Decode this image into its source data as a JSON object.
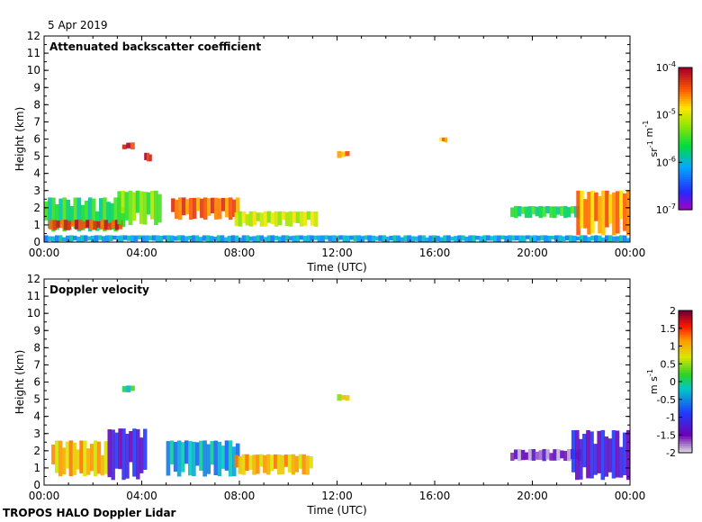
{
  "date": "5 Apr 2019",
  "footer": "TROPOS HALO Doppler Lidar",
  "chart_data": [
    {
      "type": "heatmap",
      "title": "Attenuated backscatter coefficient",
      "xlabel": "Time (UTC)",
      "ylabel": "Height (km)",
      "xticks": [
        "00:00",
        "04:00",
        "08:00",
        "12:00",
        "16:00",
        "20:00",
        "00:00"
      ],
      "xlim_hours": [
        0,
        24
      ],
      "ylim": [
        0,
        12
      ],
      "yticks": [
        0,
        1,
        2,
        3,
        4,
        5,
        6,
        7,
        8,
        9,
        10,
        11,
        12
      ],
      "colorbar": {
        "scale": "log",
        "range": [
          1e-07,
          0.0001
        ],
        "ticks": [
          "10^-7",
          "10^-6",
          "10^-5",
          "10^-4"
        ],
        "tick_labels": [
          {
            "base": "10",
            "exp": "-7"
          },
          {
            "base": "10",
            "exp": "-6"
          },
          {
            "base": "10",
            "exp": "-5"
          },
          {
            "base": "10",
            "exp": "-4"
          }
        ],
        "units_parts": [
          {
            "base": "sr",
            "exp": "-1"
          },
          {
            "base": " m",
            "exp": "-1"
          }
        ]
      },
      "features": [
        {
          "name": "boundary-layer aerosol morning",
          "t": [
            0.0,
            3.3
          ],
          "z": [
            0.6,
            2.6
          ],
          "level": 0.45
        },
        {
          "name": "cloud base layer 00-03",
          "t": [
            0.2,
            3.2
          ],
          "z": [
            0.7,
            1.3
          ],
          "level": 0.9
        },
        {
          "name": "layer 03-05",
          "t": [
            3.0,
            4.8
          ],
          "z": [
            1.0,
            3.0
          ],
          "level": 0.55
        },
        {
          "name": "cloud layer 05-08",
          "t": [
            5.2,
            8.0
          ],
          "z": [
            1.3,
            2.6
          ],
          "level": 0.85
        },
        {
          "name": "cloud layer 08-11",
          "t": [
            7.8,
            11.2
          ],
          "z": [
            0.9,
            1.8
          ],
          "level": 0.65
        },
        {
          "name": "near-surface band",
          "t": [
            0.0,
            24.0
          ],
          "z": [
            0.0,
            0.4
          ],
          "level": 0.3
        },
        {
          "name": "mid cloud 03-04h",
          "t": [
            3.2,
            3.7
          ],
          "z": [
            5.4,
            5.8
          ],
          "level": 0.95
        },
        {
          "name": "mid cloud 04h",
          "t": [
            4.1,
            4.4
          ],
          "z": [
            4.7,
            5.2
          ],
          "level": 0.95
        },
        {
          "name": "mid cloud 12h",
          "t": [
            12.0,
            12.5
          ],
          "z": [
            4.9,
            5.3
          ],
          "level": 0.8
        },
        {
          "name": "mid cloud 16h",
          "t": [
            16.2,
            16.5
          ],
          "z": [
            5.8,
            6.1
          ],
          "level": 0.8
        },
        {
          "name": "evening layer",
          "t": [
            19.1,
            22.0
          ],
          "z": [
            1.4,
            2.1
          ],
          "level": 0.45
        },
        {
          "name": "evening convective",
          "t": [
            21.8,
            24.0
          ],
          "z": [
            0.4,
            3.0
          ],
          "level": 0.8
        }
      ]
    },
    {
      "type": "heatmap",
      "title": "Doppler velocity",
      "xlabel": "Time (UTC)",
      "ylabel": "Height (km)",
      "xticks": [
        "00:00",
        "04:00",
        "08:00",
        "12:00",
        "16:00",
        "20:00",
        "00:00"
      ],
      "xlim_hours": [
        0,
        24
      ],
      "ylim": [
        0,
        12
      ],
      "yticks": [
        0,
        1,
        2,
        3,
        4,
        5,
        6,
        7,
        8,
        9,
        10,
        11,
        12
      ],
      "colorbar": {
        "scale": "linear",
        "range": [
          -2,
          2
        ],
        "ticks": [
          "-2",
          "-1.5",
          "-1",
          "-0.5",
          "0",
          "0.5",
          "1",
          "1.5",
          "2"
        ],
        "tick_labels": [
          {
            "base": "-2",
            "exp": ""
          },
          {
            "base": "-1.5",
            "exp": ""
          },
          {
            "base": "-1",
            "exp": ""
          },
          {
            "base": "-0.5",
            "exp": ""
          },
          {
            "base": "0",
            "exp": ""
          },
          {
            "base": "0.5",
            "exp": ""
          },
          {
            "base": "1",
            "exp": ""
          },
          {
            "base": "1.5",
            "exp": ""
          },
          {
            "base": "2",
            "exp": ""
          }
        ],
        "units_parts": [
          {
            "base": "m s",
            "exp": "-1"
          }
        ]
      },
      "features": [
        {
          "name": "morning updraft layer",
          "t": [
            0.3,
            2.6
          ],
          "z": [
            0.5,
            2.6
          ],
          "level": 0.75
        },
        {
          "name": "morning downdrafts",
          "t": [
            2.6,
            4.2
          ],
          "z": [
            0.3,
            3.3
          ],
          "level": 0.2
        },
        {
          "name": "cloud 05-08 mixed",
          "t": [
            5.0,
            8.0
          ],
          "z": [
            0.5,
            2.6
          ],
          "level": 0.4
        },
        {
          "name": "cloud 08-11 updraft",
          "t": [
            7.8,
            11.0
          ],
          "z": [
            0.6,
            1.8
          ],
          "level": 0.75
        },
        {
          "name": "mid cloud 03-04h",
          "t": [
            3.2,
            3.7
          ],
          "z": [
            5.4,
            5.8
          ],
          "level": 0.5
        },
        {
          "name": "mid cloud 12h",
          "t": [
            12.0,
            12.5
          ],
          "z": [
            4.9,
            5.3
          ],
          "level": 0.7
        },
        {
          "name": "evening layer",
          "t": [
            19.1,
            22.0
          ],
          "z": [
            1.4,
            2.1
          ],
          "level": 0.1
        },
        {
          "name": "evening convective",
          "t": [
            21.6,
            24.0
          ],
          "z": [
            0.3,
            3.2
          ],
          "level": 0.2
        }
      ]
    }
  ]
}
